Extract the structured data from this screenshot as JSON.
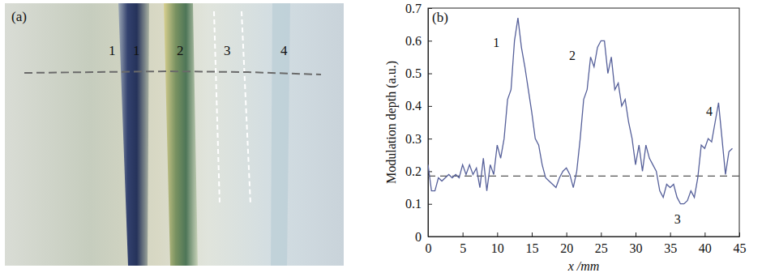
{
  "photo": {
    "panel_label": "(a)",
    "labels": [
      "1",
      "1",
      "2",
      "3",
      "4"
    ]
  },
  "chart_data": {
    "type": "line",
    "panel_label": "(b)",
    "x_label": "x /mm",
    "y_label": "Modulation depth (a.u.)",
    "x": [
      0,
      0.5,
      1,
      1.5,
      2,
      2.5,
      3,
      3.5,
      4,
      4.5,
      5,
      5.5,
      6,
      6.5,
      7,
      7.5,
      8,
      8.5,
      9,
      9.5,
      10,
      10.5,
      11,
      11.5,
      12,
      12.5,
      13,
      13.5,
      14,
      14.5,
      15,
      15.5,
      16,
      16.5,
      17,
      17.5,
      18,
      18.5,
      19,
      19.5,
      20,
      20.5,
      21,
      21.5,
      22,
      22.5,
      23,
      23.5,
      24,
      24.5,
      25,
      25.5,
      26,
      26.5,
      27,
      27.5,
      28,
      28.5,
      29,
      29.5,
      30,
      30.5,
      31,
      31.5,
      32,
      32.5,
      33,
      33.5,
      34,
      34.5,
      35,
      35.5,
      36,
      36.5,
      37,
      37.5,
      38,
      38.5,
      39,
      39.5,
      40,
      40.5,
      41,
      41.5,
      42,
      42.5,
      43,
      43.5,
      44
    ],
    "series": [
      {
        "color": "#56609a",
        "line_style": "solid",
        "values": [
          0.22,
          0.14,
          0.14,
          0.18,
          0.17,
          0.18,
          0.19,
          0.18,
          0.19,
          0.18,
          0.22,
          0.19,
          0.22,
          0.19,
          0.21,
          0.15,
          0.24,
          0.14,
          0.22,
          0.19,
          0.28,
          0.24,
          0.3,
          0.42,
          0.45,
          0.6,
          0.67,
          0.58,
          0.52,
          0.45,
          0.38,
          0.3,
          0.28,
          0.22,
          0.18,
          0.17,
          0.16,
          0.15,
          0.18,
          0.2,
          0.21,
          0.19,
          0.15,
          0.2,
          0.3,
          0.42,
          0.45,
          0.55,
          0.52,
          0.58,
          0.6,
          0.6,
          0.5,
          0.55,
          0.45,
          0.47,
          0.4,
          0.42,
          0.35,
          0.3,
          0.22,
          0.28,
          0.2,
          0.28,
          0.24,
          0.22,
          0.2,
          0.14,
          0.12,
          0.16,
          0.15,
          0.16,
          0.12,
          0.1,
          0.1,
          0.11,
          0.14,
          0.12,
          0.18,
          0.28,
          0.27,
          0.3,
          0.29,
          0.35,
          0.41,
          0.3,
          0.19,
          0.26,
          0.27
        ]
      }
    ],
    "reference_lines": [
      {
        "y": 0.185,
        "line_style": "dashed",
        "color": "#555555"
      }
    ],
    "annotations": [
      {
        "text": "1",
        "x": 9.4,
        "y": 0.58
      },
      {
        "text": "2",
        "x": 20.4,
        "y": 0.54
      },
      {
        "text": "3",
        "x": 35.6,
        "y": 0.04
      },
      {
        "text": "4",
        "x": 40.2,
        "y": 0.37
      }
    ],
    "xlim": [
      0,
      45
    ],
    "xticks": [
      0,
      5,
      10,
      15,
      20,
      25,
      30,
      35,
      40,
      45
    ],
    "ylim": [
      0,
      0.7
    ],
    "yticks": [
      0,
      0.1,
      0.2,
      0.3,
      0.4,
      0.5,
      0.6,
      0.7
    ],
    "grid": false
  }
}
